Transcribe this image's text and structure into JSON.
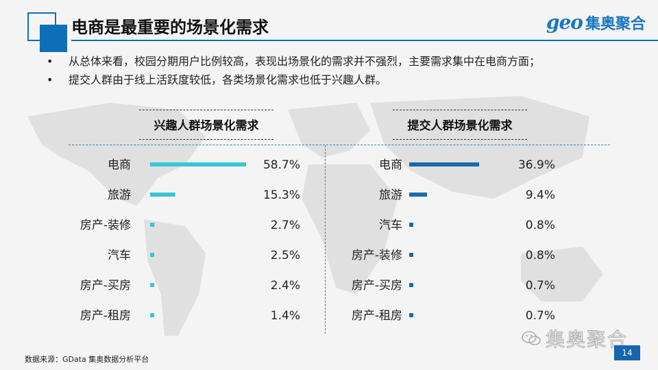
{
  "header": {
    "title": "电商是最重要的场景化需求",
    "brand_geo": "geo",
    "brand_cn": "集奥聚合"
  },
  "bullets": [
    "从总体来看，校园分期用户比例较高，表现出场景化的需求并不强烈，主要需求集中在电商方面；",
    "提交人群由于线上活跃度较低，各类场景化需求也低于兴趣人群。"
  ],
  "footer": {
    "source": "数据来源：GData  集奥数据分析平台",
    "page_number": "14",
    "watermark": "集奥聚合"
  },
  "colors": {
    "accent": "#0d6fb8",
    "interest_bar": "#3bc4d6",
    "submit_bar": "#1b6aa8"
  },
  "chart_data": [
    {
      "type": "bar",
      "orientation": "horizontal",
      "title": "兴趣人群场景化需求",
      "categories": [
        "电商",
        "旅游",
        "房产-装修",
        "汽车",
        "房产-买房",
        "房产-租房"
      ],
      "values": [
        58.7,
        15.3,
        2.7,
        2.5,
        2.4,
        1.4
      ],
      "value_labels": [
        "58.7%",
        "15.3%",
        "2.7%",
        "2.5%",
        "2.4%",
        "1.4%"
      ],
      "unit": "%",
      "color": "#3bc4d6",
      "grid": false,
      "legend": "none"
    },
    {
      "type": "bar",
      "orientation": "horizontal",
      "title": "提交人群场景化需求",
      "categories": [
        "电商",
        "旅游",
        "汽车",
        "房产-装修",
        "房产-买房",
        "房产-租房"
      ],
      "values": [
        36.9,
        9.4,
        0.8,
        0.8,
        0.7,
        0.7
      ],
      "value_labels": [
        "36.9%",
        "9.4%",
        "0.8%",
        "0.8%",
        "0.7%",
        "0.7%"
      ],
      "unit": "%",
      "color": "#1b6aa8",
      "grid": false,
      "legend": "none"
    }
  ]
}
